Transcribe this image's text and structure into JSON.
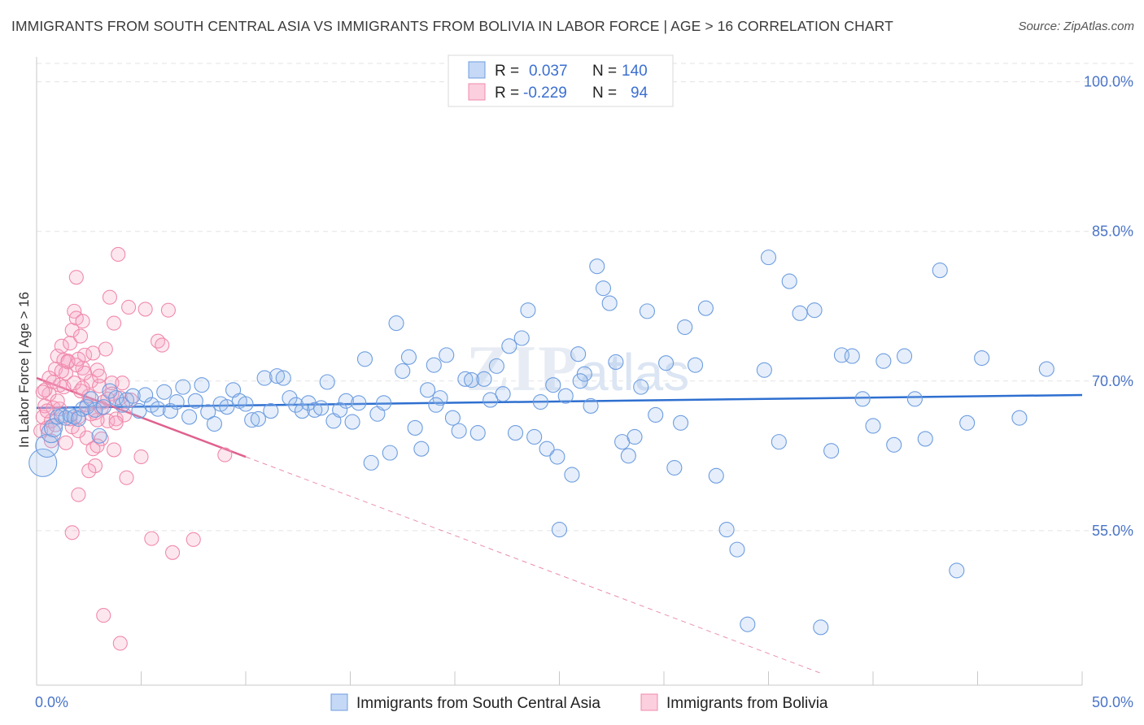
{
  "title": "IMMIGRANTS FROM SOUTH CENTRAL ASIA VS IMMIGRANTS FROM BOLIVIA IN LABOR FORCE | AGE > 16 CORRELATION CHART",
  "source": "Source: ZipAtlas.com",
  "watermark": "ZIPatlas",
  "colors": {
    "blue": "#6d9de0",
    "blue_line": "#2e6fd0",
    "pink": "#f08aac",
    "pink_line": "#e0608e",
    "tick_text": "#4a74c8"
  },
  "legend": {
    "rows": [
      {
        "r_label": "R =",
        "r_value": "0.037",
        "n_label": "N =",
        "n_value": "140"
      },
      {
        "r_label": "R =",
        "r_value": "-0.229",
        "n_label": "N =",
        "n_value": "94"
      }
    ]
  },
  "chart_data": {
    "type": "scatter",
    "title": "IMMIGRANTS FROM SOUTH CENTRAL ASIA VS IMMIGRANTS FROM BOLIVIA IN LABOR FORCE | AGE > 16 CORRELATION CHART",
    "xlabel": "",
    "ylabel": "In Labor Force | Age > 16",
    "xlim": [
      0,
      50
    ],
    "ylim": [
      39.5,
      102.5
    ],
    "x_tick_labels": [
      "0.0%",
      "50.0%"
    ],
    "y_ticks": [
      55,
      70,
      85,
      100
    ],
    "y_tick_labels": [
      "55.0%",
      "70.0%",
      "85.0%",
      "100.0%"
    ],
    "grid": true,
    "legend_position": "top-center",
    "series": [
      {
        "name": "Immigrants from South Central Asia",
        "R": 0.037,
        "N": 140,
        "trend": {
          "x": [
            0,
            50
          ],
          "y": [
            67.3,
            68.6
          ]
        },
        "points": [
          [
            0.3,
            61.8
          ],
          [
            0.5,
            63.5
          ],
          [
            0.7,
            64.8
          ],
          [
            0.8,
            65.3
          ],
          [
            1.0,
            66.4
          ],
          [
            1.2,
            66.5
          ],
          [
            1.4,
            66.3
          ],
          [
            1.6,
            66.6
          ],
          [
            1.8,
            66.4
          ],
          [
            2.0,
            66.2
          ],
          [
            2.2,
            67.2
          ],
          [
            2.4,
            67.4
          ],
          [
            2.6,
            68.2
          ],
          [
            2.8,
            67.1
          ],
          [
            3.0,
            64.5
          ],
          [
            3.2,
            67.4
          ],
          [
            3.5,
            69.0
          ],
          [
            3.8,
            68.3
          ],
          [
            4.1,
            67.6
          ],
          [
            4.3,
            68.1
          ],
          [
            4.6,
            68.5
          ],
          [
            4.9,
            67.0
          ],
          [
            5.2,
            68.6
          ],
          [
            5.5,
            67.6
          ],
          [
            5.8,
            67.2
          ],
          [
            6.1,
            68.9
          ],
          [
            6.4,
            67.0
          ],
          [
            6.7,
            67.9
          ],
          [
            7.0,
            69.4
          ],
          [
            7.3,
            66.4
          ],
          [
            7.6,
            68.0
          ],
          [
            7.9,
            69.6
          ],
          [
            8.2,
            66.9
          ],
          [
            8.5,
            65.7
          ],
          [
            8.8,
            67.7
          ],
          [
            9.1,
            67.4
          ],
          [
            9.4,
            69.1
          ],
          [
            9.7,
            68.0
          ],
          [
            10.0,
            67.7
          ],
          [
            10.3,
            66.1
          ],
          [
            10.6,
            66.2
          ],
          [
            10.9,
            70.3
          ],
          [
            11.2,
            67.0
          ],
          [
            11.5,
            70.5
          ],
          [
            11.8,
            70.3
          ],
          [
            12.1,
            68.3
          ],
          [
            12.4,
            67.6
          ],
          [
            12.7,
            67.0
          ],
          [
            13.0,
            67.8
          ],
          [
            13.3,
            67.1
          ],
          [
            13.6,
            67.3
          ],
          [
            13.9,
            69.9
          ],
          [
            14.2,
            66.0
          ],
          [
            14.5,
            67.1
          ],
          [
            14.8,
            68.0
          ],
          [
            15.1,
            65.9
          ],
          [
            15.4,
            67.8
          ],
          [
            15.7,
            72.2
          ],
          [
            16.0,
            61.8
          ],
          [
            16.3,
            66.7
          ],
          [
            16.6,
            67.8
          ],
          [
            16.9,
            62.8
          ],
          [
            17.2,
            75.8
          ],
          [
            17.5,
            71.0
          ],
          [
            17.8,
            72.4
          ],
          [
            18.1,
            65.3
          ],
          [
            18.4,
            63.2
          ],
          [
            18.7,
            69.1
          ],
          [
            19.0,
            71.6
          ],
          [
            19.3,
            68.3
          ],
          [
            19.6,
            72.6
          ],
          [
            19.9,
            66.3
          ],
          [
            20.2,
            65.0
          ],
          [
            20.5,
            70.2
          ],
          [
            20.8,
            70.1
          ],
          [
            21.1,
            64.8
          ],
          [
            21.4,
            70.2
          ],
          [
            21.7,
            68.1
          ],
          [
            22.0,
            71.5
          ],
          [
            22.3,
            68.7
          ],
          [
            22.6,
            73.5
          ],
          [
            22.9,
            64.8
          ],
          [
            23.2,
            74.3
          ],
          [
            23.5,
            77.1
          ],
          [
            23.8,
            64.4
          ],
          [
            24.1,
            67.9
          ],
          [
            24.4,
            63.2
          ],
          [
            24.7,
            69.6
          ],
          [
            25.0,
            55.1
          ],
          [
            25.3,
            68.5
          ],
          [
            25.6,
            60.6
          ],
          [
            25.9,
            72.7
          ],
          [
            26.2,
            70.7
          ],
          [
            26.5,
            67.5
          ],
          [
            26.8,
            81.5
          ],
          [
            27.1,
            79.3
          ],
          [
            27.4,
            77.8
          ],
          [
            27.7,
            71.9
          ],
          [
            28.0,
            63.9
          ],
          [
            28.3,
            62.5
          ],
          [
            28.6,
            64.4
          ],
          [
            28.9,
            69.4
          ],
          [
            29.2,
            77.0
          ],
          [
            30.1,
            71.8
          ],
          [
            30.5,
            61.3
          ],
          [
            31.0,
            75.4
          ],
          [
            31.5,
            71.6
          ],
          [
            32.0,
            77.3
          ],
          [
            32.5,
            60.5
          ],
          [
            33.0,
            55.1
          ],
          [
            33.5,
            53.1
          ],
          [
            34.0,
            45.6
          ],
          [
            34.8,
            71.1
          ],
          [
            35.0,
            82.4
          ],
          [
            35.5,
            63.9
          ],
          [
            36.0,
            80.0
          ],
          [
            36.5,
            76.8
          ],
          [
            37.2,
            77.1
          ],
          [
            38.0,
            63.0
          ],
          [
            38.5,
            72.6
          ],
          [
            39.0,
            72.5
          ],
          [
            39.5,
            68.2
          ],
          [
            40.0,
            65.5
          ],
          [
            40.5,
            72.0
          ],
          [
            41.0,
            63.6
          ],
          [
            41.5,
            72.5
          ],
          [
            42.0,
            68.2
          ],
          [
            42.5,
            64.2
          ],
          [
            43.2,
            81.1
          ],
          [
            44.0,
            51.0
          ],
          [
            44.5,
            65.8
          ],
          [
            45.2,
            72.3
          ],
          [
            47.0,
            66.3
          ],
          [
            48.3,
            71.2
          ],
          [
            24.9,
            62.4
          ],
          [
            29.6,
            66.6
          ],
          [
            30.8,
            65.8
          ],
          [
            37.5,
            45.3
          ],
          [
            19.1,
            67.6
          ],
          [
            26.0,
            70.0
          ]
        ]
      },
      {
        "name": "Immigrants from Bolivia",
        "R": -0.229,
        "N": 94,
        "trend": {
          "x": [
            0,
            10
          ],
          "y": [
            70.3,
            62.4
          ]
        },
        "trend_extended": {
          "x": [
            10,
            37.5
          ],
          "y": [
            62.4,
            40.7
          ]
        },
        "points": [
          [
            0.2,
            65.0
          ],
          [
            0.3,
            66.4
          ],
          [
            0.4,
            67.5
          ],
          [
            0.5,
            65.3
          ],
          [
            0.6,
            68.7
          ],
          [
            0.7,
            66.0
          ],
          [
            0.8,
            67.3
          ],
          [
            0.9,
            71.2
          ],
          [
            1.0,
            72.5
          ],
          [
            1.1,
            69.6
          ],
          [
            1.2,
            73.5
          ],
          [
            1.3,
            72.1
          ],
          [
            1.4,
            70.8
          ],
          [
            1.5,
            71.9
          ],
          [
            1.6,
            73.8
          ],
          [
            1.7,
            75.1
          ],
          [
            1.8,
            77.0
          ],
          [
            1.9,
            76.3
          ],
          [
            2.0,
            66.4
          ],
          [
            2.1,
            69.0
          ],
          [
            2.2,
            71.3
          ],
          [
            2.3,
            72.6
          ],
          [
            2.4,
            64.3
          ],
          [
            2.5,
            68.5
          ],
          [
            2.6,
            70.0
          ],
          [
            2.7,
            63.2
          ],
          [
            2.8,
            66.8
          ],
          [
            2.9,
            71.1
          ],
          [
            3.0,
            69.5
          ],
          [
            3.1,
            64.2
          ],
          [
            3.2,
            67.9
          ],
          [
            3.3,
            73.2
          ],
          [
            3.4,
            66.0
          ],
          [
            3.5,
            78.4
          ],
          [
            3.6,
            69.8
          ],
          [
            3.7,
            63.1
          ],
          [
            3.8,
            66.2
          ],
          [
            3.9,
            82.7
          ],
          [
            4.0,
            68.3
          ],
          [
            4.1,
            69.8
          ],
          [
            4.2,
            66.6
          ],
          [
            4.3,
            60.3
          ],
          [
            4.4,
            77.4
          ],
          [
            4.5,
            68.1
          ],
          [
            5.0,
            62.4
          ],
          [
            5.2,
            77.2
          ],
          [
            5.5,
            54.2
          ],
          [
            5.8,
            74.0
          ],
          [
            6.0,
            73.6
          ],
          [
            6.3,
            77.1
          ],
          [
            6.5,
            52.8
          ],
          [
            7.5,
            54.1
          ],
          [
            3.2,
            46.5
          ],
          [
            4.0,
            43.7
          ],
          [
            2.0,
            58.6
          ],
          [
            1.9,
            80.4
          ],
          [
            2.8,
            61.5
          ],
          [
            9.0,
            62.6
          ],
          [
            2.2,
            76.0
          ],
          [
            1.3,
            69.4
          ],
          [
            1.7,
            65.4
          ],
          [
            2.9,
            66.1
          ],
          [
            0.9,
            65.6
          ],
          [
            1.1,
            67.2
          ],
          [
            0.6,
            70.3
          ],
          [
            1.5,
            72.0
          ],
          [
            2.3,
            70.8
          ],
          [
            3.6,
            68.7
          ],
          [
            0.4,
            69.1
          ],
          [
            1.2,
            71.0
          ],
          [
            2.0,
            65.0
          ],
          [
            2.5,
            61.0
          ],
          [
            3.4,
            68.2
          ],
          [
            2.1,
            74.5
          ],
          [
            1.8,
            69.8
          ],
          [
            2.6,
            66.7
          ],
          [
            0.8,
            69.9
          ],
          [
            1.4,
            63.8
          ],
          [
            3.0,
            70.5
          ],
          [
            2.4,
            67.6
          ],
          [
            1.0,
            68.0
          ],
          [
            0.5,
            67.0
          ],
          [
            1.6,
            66.2
          ],
          [
            2.7,
            72.8
          ],
          [
            3.8,
            65.8
          ],
          [
            0.3,
            68.9
          ],
          [
            1.9,
            71.6
          ],
          [
            2.2,
            69.3
          ],
          [
            3.1,
            67.3
          ],
          [
            2.9,
            63.5
          ],
          [
            1.7,
            54.8
          ],
          [
            0.7,
            64.0
          ],
          [
            2.0,
            72.2
          ],
          [
            3.7,
            75.8
          ]
        ]
      }
    ]
  }
}
